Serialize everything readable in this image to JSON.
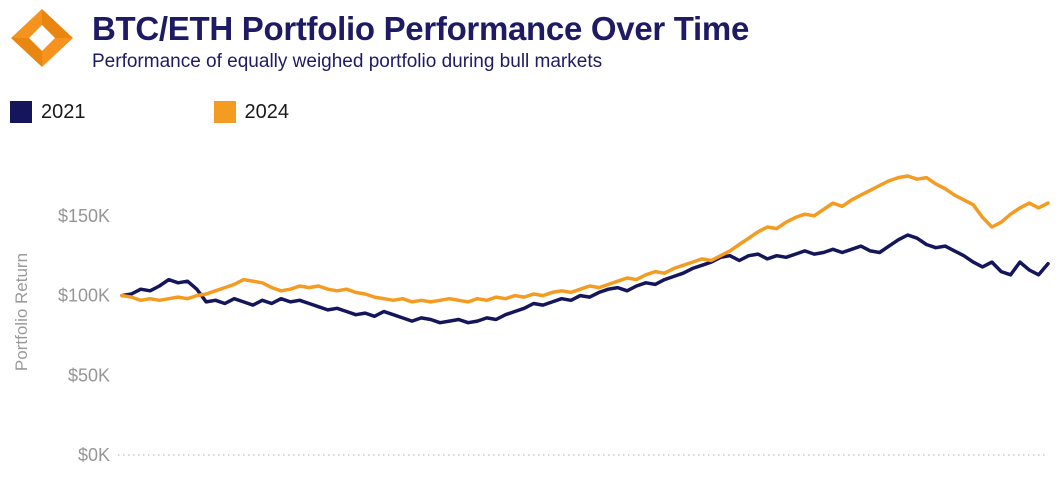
{
  "header": {
    "title": "BTC/ETH Portfolio Performance Over Time",
    "subtitle": "Performance of equally weighed portfolio during bull markets"
  },
  "legend": [
    {
      "label": "2021",
      "color": "#15155C"
    },
    {
      "label": "2024",
      "color": "#F49B22"
    }
  ],
  "colors": {
    "navy": "#1E1B64",
    "brand_orange": "#F6921E",
    "brand_orange_dark": "#E8860F",
    "tick_gray": "#969696",
    "baseline_gray": "#C9C9C9"
  },
  "chart_data": {
    "type": "line",
    "title": "BTC/ETH Portfolio Performance Over Time",
    "subtitle": "Performance of equally weighed portfolio during bull markets",
    "xlabel": "",
    "ylabel": "Portfolio Return",
    "y_unit": "thousand USD ($K)",
    "ylim": [
      0,
      180
    ],
    "grid": false,
    "legend_position": "top-left",
    "x_axis_labels_visible": false,
    "y_ticks": [
      {
        "value": 0,
        "label": "$0K"
      },
      {
        "value": 50,
        "label": "$50K"
      },
      {
        "value": 100,
        "label": "$100K"
      },
      {
        "value": 150,
        "label": "$150K"
      }
    ],
    "series": [
      {
        "name": "2021",
        "color": "#15155C",
        "values": [
          100,
          101,
          104,
          103,
          106,
          110,
          108,
          109,
          104,
          96,
          97,
          95,
          98,
          96,
          94,
          97,
          95,
          98,
          96,
          97,
          95,
          93,
          91,
          92,
          90,
          88,
          89,
          87,
          90,
          88,
          86,
          84,
          86,
          85,
          83,
          84,
          85,
          83,
          84,
          86,
          85,
          88,
          90,
          92,
          95,
          94,
          96,
          98,
          97,
          100,
          99,
          102,
          104,
          105,
          103,
          106,
          108,
          107,
          110,
          112,
          114,
          117,
          119,
          121,
          124,
          125,
          122,
          125,
          126,
          123,
          125,
          124,
          126,
          128,
          126,
          127,
          129,
          127,
          129,
          131,
          128,
          127,
          131,
          135,
          138,
          136,
          132,
          130,
          131,
          128,
          125,
          121,
          118,
          121,
          115,
          113,
          121,
          116,
          113,
          120
        ]
      },
      {
        "name": "2024",
        "color": "#F49B22",
        "values": [
          100,
          99,
          97,
          98,
          97,
          98,
          99,
          98,
          100,
          101,
          103,
          105,
          107,
          110,
          109,
          108,
          105,
          103,
          104,
          106,
          105,
          106,
          104,
          103,
          104,
          102,
          101,
          99,
          98,
          97,
          98,
          96,
          97,
          96,
          97,
          98,
          97,
          96,
          98,
          97,
          99,
          98,
          100,
          99,
          101,
          100,
          102,
          103,
          102,
          104,
          106,
          105,
          107,
          109,
          111,
          110,
          113,
          115,
          114,
          117,
          119,
          121,
          123,
          122,
          125,
          128,
          132,
          136,
          140,
          143,
          142,
          146,
          149,
          151,
          150,
          154,
          158,
          156,
          160,
          163,
          166,
          169,
          172,
          174,
          175,
          173,
          174,
          170,
          167,
          163,
          160,
          157,
          149,
          143,
          146,
          151,
          155,
          158,
          155,
          158
        ]
      }
    ]
  }
}
